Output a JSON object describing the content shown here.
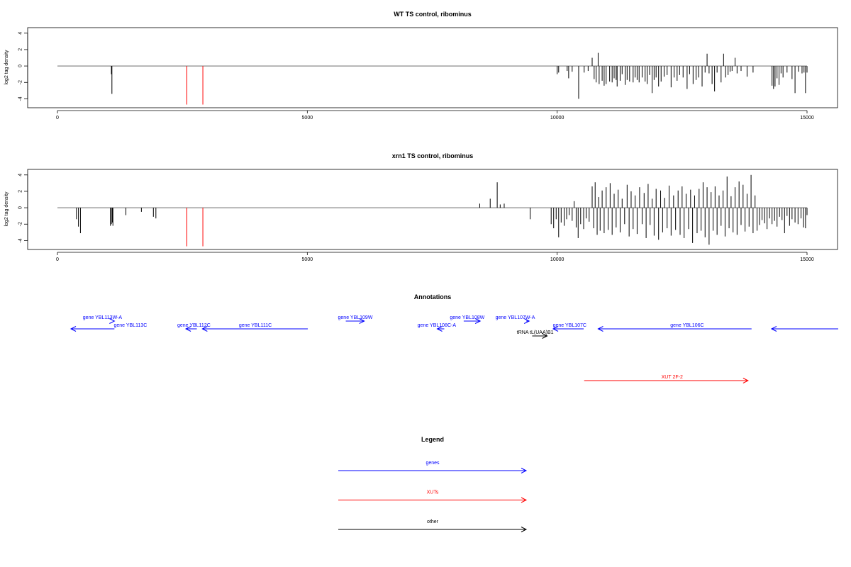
{
  "colors": {
    "genes": "#0000ff",
    "XUTs": "#ff0000",
    "other": "#000000",
    "axis": "#000000",
    "baseline": "#888888"
  },
  "chart_data": [
    {
      "type": "bar",
      "title": "WT TS control, ribominus",
      "ylabel": "log2 tag density",
      "xlim": [
        0,
        15000
      ],
      "ylim": [
        -5,
        4.5
      ],
      "xticks": [
        0,
        5000,
        10000,
        15000
      ],
      "yticks": [
        -4,
        -2,
        0,
        2,
        4
      ],
      "baseline_x": [
        0,
        15000
      ],
      "highlight_x": [
        2590,
        2910
      ],
      "highlight_color": "#ff0000",
      "bars": [
        [
          1080,
          -1.0
        ],
        [
          1090,
          -3.4
        ],
        [
          10000,
          -1.0
        ],
        [
          10030,
          -0.8
        ],
        [
          10200,
          -0.6
        ],
        [
          10230,
          -1.5
        ],
        [
          10300,
          -0.7
        ],
        [
          10430,
          -4.0
        ],
        [
          10540,
          -0.8
        ],
        [
          10620,
          -0.6
        ],
        [
          10700,
          1.0
        ],
        [
          10740,
          -1.6
        ],
        [
          10780,
          -2.0
        ],
        [
          10820,
          1.6
        ],
        [
          10840,
          -2.2
        ],
        [
          10900,
          -1.8
        ],
        [
          10940,
          -2.4
        ],
        [
          10980,
          -2.2
        ],
        [
          11050,
          -1.9
        ],
        [
          11100,
          -2.0
        ],
        [
          11140,
          -1.5
        ],
        [
          11180,
          -1.7
        ],
        [
          11200,
          -2.5
        ],
        [
          11260,
          -1.8
        ],
        [
          11300,
          -1.0
        ],
        [
          11360,
          -2.3
        ],
        [
          11400,
          -1.7
        ],
        [
          11450,
          -1.9
        ],
        [
          11520,
          -2.0
        ],
        [
          11560,
          -1.4
        ],
        [
          11600,
          -1.7
        ],
        [
          11640,
          -2.0
        ],
        [
          11700,
          -1.4
        ],
        [
          11760,
          -1.9
        ],
        [
          11800,
          -2.2
        ],
        [
          11850,
          -1.1
        ],
        [
          11900,
          -3.3
        ],
        [
          11940,
          -1.7
        ],
        [
          11980,
          -1.4
        ],
        [
          12030,
          -2.5
        ],
        [
          12080,
          -1.9
        ],
        [
          12140,
          -1.3
        ],
        [
          12200,
          -1.1
        ],
        [
          12280,
          -2.6
        ],
        [
          12340,
          -1.4
        ],
        [
          12400,
          -1.8
        ],
        [
          12450,
          -1.1
        ],
        [
          12520,
          -1.4
        ],
        [
          12600,
          -2.8
        ],
        [
          12650,
          -1.0
        ],
        [
          12720,
          -2.2
        ],
        [
          12780,
          -1.7
        ],
        [
          12830,
          -1.4
        ],
        [
          12900,
          -2.5
        ],
        [
          12960,
          -0.8
        ],
        [
          13000,
          1.5
        ],
        [
          13040,
          -0.9
        ],
        [
          13100,
          -2.2
        ],
        [
          13150,
          -3.1
        ],
        [
          13200,
          -0.8
        ],
        [
          13280,
          -2.0
        ],
        [
          13330,
          1.5
        ],
        [
          13370,
          -1.4
        ],
        [
          13420,
          -1.1
        ],
        [
          13460,
          -0.7
        ],
        [
          13500,
          -0.6
        ],
        [
          13560,
          1.0
        ],
        [
          13600,
          -0.9
        ],
        [
          13680,
          -0.6
        ],
        [
          13800,
          -1.3
        ],
        [
          13920,
          -0.8
        ],
        [
          14300,
          -2.4
        ],
        [
          14330,
          -2.8
        ],
        [
          14360,
          -2.5
        ],
        [
          14400,
          -1.5
        ],
        [
          14440,
          -2.3
        ],
        [
          14480,
          -0.9
        ],
        [
          14520,
          -1.4
        ],
        [
          14600,
          -0.8
        ],
        [
          14700,
          -1.6
        ],
        [
          14760,
          -3.3
        ],
        [
          14830,
          -0.7
        ],
        [
          14900,
          -0.9
        ],
        [
          14940,
          -0.8
        ],
        [
          14970,
          -3.3
        ],
        [
          15000,
          -0.8
        ]
      ]
    },
    {
      "type": "bar",
      "title": "xrn1 TS control, ribominus",
      "ylabel": "log2 tag density",
      "xlim": [
        0,
        15000
      ],
      "ylim": [
        -5,
        4.5
      ],
      "xticks": [
        0,
        5000,
        10000,
        15000
      ],
      "yticks": [
        -4,
        -2,
        0,
        2,
        4
      ],
      "baseline_x": [
        0,
        15000
      ],
      "highlight_x": [
        2590,
        2910
      ],
      "highlight_color": "#ff0000",
      "bars": [
        [
          380,
          -1.4
        ],
        [
          420,
          -2.3
        ],
        [
          460,
          -3.1
        ],
        [
          1060,
          -2.2
        ],
        [
          1080,
          -2.0
        ],
        [
          1100,
          -1.8
        ],
        [
          1110,
          -2.2
        ],
        [
          1370,
          -0.9
        ],
        [
          1680,
          -0.5
        ],
        [
          1920,
          -1.1
        ],
        [
          1970,
          -1.3
        ],
        [
          8450,
          0.5
        ],
        [
          8660,
          1.1
        ],
        [
          8800,
          3.1
        ],
        [
          8860,
          0.4
        ],
        [
          8940,
          0.5
        ],
        [
          9460,
          -1.4
        ],
        [
          9880,
          -2.0
        ],
        [
          9930,
          -2.5
        ],
        [
          9980,
          -1.4
        ],
        [
          10030,
          -3.6
        ],
        [
          10080,
          -1.8
        ],
        [
          10140,
          -2.2
        ],
        [
          10190,
          -1.4
        ],
        [
          10240,
          -0.9
        ],
        [
          10300,
          -1.6
        ],
        [
          10340,
          0.8
        ],
        [
          10380,
          -2.4
        ],
        [
          10420,
          -3.7
        ],
        [
          10470,
          -2.0
        ],
        [
          10530,
          -2.6
        ],
        [
          10580,
          -1.3
        ],
        [
          10640,
          -1.7
        ],
        [
          10700,
          2.6
        ],
        [
          10730,
          -2.5
        ],
        [
          10760,
          3.1
        ],
        [
          10800,
          -3.3
        ],
        [
          10830,
          1.3
        ],
        [
          10860,
          -2.8
        ],
        [
          10900,
          2.1
        ],
        [
          10940,
          -3.1
        ],
        [
          10980,
          2.5
        ],
        [
          11020,
          -2.7
        ],
        [
          11060,
          3.0
        ],
        [
          11100,
          -3.3
        ],
        [
          11140,
          1.7
        ],
        [
          11180,
          -2.4
        ],
        [
          11220,
          2.2
        ],
        [
          11260,
          -3.0
        ],
        [
          11300,
          1.1
        ],
        [
          11350,
          -2.0
        ],
        [
          11400,
          2.8
        ],
        [
          11440,
          -3.5
        ],
        [
          11480,
          2.0
        ],
        [
          11520,
          -2.6
        ],
        [
          11560,
          1.5
        ],
        [
          11600,
          -3.2
        ],
        [
          11650,
          2.5
        ],
        [
          11700,
          -2.0
        ],
        [
          11740,
          1.8
        ],
        [
          11780,
          -3.7
        ],
        [
          11820,
          2.9
        ],
        [
          11860,
          -2.1
        ],
        [
          11900,
          1.1
        ],
        [
          11940,
          -3.4
        ],
        [
          11980,
          2.3
        ],
        [
          12030,
          -3.9
        ],
        [
          12070,
          2.1
        ],
        [
          12110,
          -3.0
        ],
        [
          12150,
          1.2
        ],
        [
          12200,
          -2.5
        ],
        [
          12240,
          2.7
        ],
        [
          12280,
          -3.4
        ],
        [
          12330,
          1.5
        ],
        [
          12370,
          -2.7
        ],
        [
          12420,
          2.1
        ],
        [
          12460,
          -3.3
        ],
        [
          12500,
          2.6
        ],
        [
          12540,
          -3.7
        ],
        [
          12580,
          1.7
        ],
        [
          12630,
          -2.6
        ],
        [
          12670,
          2.2
        ],
        [
          12710,
          -4.3
        ],
        [
          12750,
          1.5
        ],
        [
          12800,
          -3.1
        ],
        [
          12840,
          2.3
        ],
        [
          12880,
          -2.8
        ],
        [
          12920,
          3.1
        ],
        [
          12960,
          -3.6
        ],
        [
          13000,
          2.5
        ],
        [
          13040,
          -4.5
        ],
        [
          13080,
          1.9
        ],
        [
          13120,
          -2.8
        ],
        [
          13160,
          2.6
        ],
        [
          13200,
          -3.3
        ],
        [
          13240,
          1.5
        ],
        [
          13280,
          -2.2
        ],
        [
          13320,
          2.1
        ],
        [
          13360,
          -3.5
        ],
        [
          13400,
          3.8
        ],
        [
          13440,
          -2.5
        ],
        [
          13480,
          1.4
        ],
        [
          13520,
          -3.0
        ],
        [
          13560,
          2.5
        ],
        [
          13600,
          -3.3
        ],
        [
          13640,
          3.2
        ],
        [
          13680,
          -2.1
        ],
        [
          13720,
          2.8
        ],
        [
          13760,
          -2.9
        ],
        [
          13800,
          1.7
        ],
        [
          13840,
          -2.3
        ],
        [
          13880,
          4.0
        ],
        [
          13920,
          -3.1
        ],
        [
          13960,
          1.5
        ],
        [
          14000,
          -2.8
        ],
        [
          14050,
          -2.1
        ],
        [
          14100,
          -1.5
        ],
        [
          14150,
          -1.9
        ],
        [
          14200,
          -2.6
        ],
        [
          14250,
          -1.3
        ],
        [
          14300,
          -2.0
        ],
        [
          14350,
          -1.6
        ],
        [
          14400,
          -2.3
        ],
        [
          14450,
          -1.1
        ],
        [
          14500,
          -1.5
        ],
        [
          14550,
          -3.1
        ],
        [
          14600,
          -1.0
        ],
        [
          14650,
          -2.2
        ],
        [
          14700,
          -1.4
        ],
        [
          14760,
          -1.8
        ],
        [
          14820,
          -2.0
        ],
        [
          14880,
          -1.3
        ],
        [
          14930,
          -2.4
        ],
        [
          14970,
          -2.5
        ],
        [
          15000,
          -0.9
        ]
      ]
    },
    {
      "type": "diagram",
      "title": "Annotations",
      "xlim": [
        0,
        15000
      ],
      "features": [
        {
          "label": "gene YBL113W-A",
          "kind": "gene",
          "start": 1130,
          "end": 1140,
          "row": 0,
          "dir": "+",
          "label_x": 900
        },
        {
          "label": "gene YBL113C",
          "kind": "gene",
          "start": 270,
          "end": 1140,
          "row": 1,
          "dir": "-",
          "label_x": 1460
        },
        {
          "label": "gene YBL112C",
          "kind": "gene",
          "start": 2570,
          "end": 2790,
          "row": 1,
          "dir": "-",
          "label_x": 2730
        },
        {
          "label": "gene YBL111C",
          "kind": "gene",
          "start": 2900,
          "end": 5010,
          "row": 1,
          "dir": "-",
          "label_x": 3960
        },
        {
          "label": "gene YBL109W",
          "kind": "gene",
          "start": 5770,
          "end": 6140,
          "row": 0,
          "dir": "+",
          "label_x": 5960
        },
        {
          "label": "gene YBL108C-A",
          "kind": "gene",
          "start": 7600,
          "end": 7740,
          "row": 1,
          "dir": "-",
          "label_x": 7590
        },
        {
          "label": "gene YBL108W",
          "kind": "gene",
          "start": 8130,
          "end": 8460,
          "row": 0,
          "dir": "+",
          "label_x": 8200
        },
        {
          "label": "gene YBL107W-A",
          "kind": "gene",
          "start": 9380,
          "end": 9440,
          "row": 0,
          "dir": "+",
          "label_x": 9160
        },
        {
          "label": "gene YBL107C",
          "kind": "gene",
          "start": 9920,
          "end": 10530,
          "row": 1,
          "dir": "-",
          "label_x": 10250
        },
        {
          "label": "tRNA tL(UAA)B1",
          "kind": "other",
          "start": 9500,
          "end": 9800,
          "row": 2,
          "dir": "+",
          "label_x": 9560
        },
        {
          "label": "gene YBL106C",
          "kind": "gene",
          "start": 10820,
          "end": 13890,
          "row": 1,
          "dir": "-",
          "label_x": 12600
        },
        {
          "label": "",
          "kind": "gene",
          "start": 14290,
          "end": 15000,
          "row": 1,
          "dir": "-",
          "label_x": 0
        },
        {
          "label": "XUT 2F-2",
          "kind": "XUT",
          "start": 10540,
          "end": 13820,
          "row": 5,
          "dir": "+",
          "label_x": 12300
        }
      ]
    },
    {
      "type": "legend",
      "title": "Legend",
      "entries": [
        {
          "label": "genes",
          "kind": "genes"
        },
        {
          "label": "XUTs",
          "kind": "XUTs"
        },
        {
          "label": "other",
          "kind": "other"
        }
      ]
    }
  ]
}
